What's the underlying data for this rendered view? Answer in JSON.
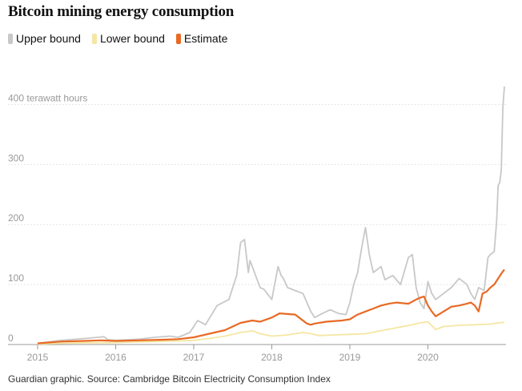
{
  "chart_data": {
    "type": "line",
    "title": "Bitcoin mining energy consumption",
    "ylabel": "terawatt hours",
    "ylim": [
      0,
      430
    ],
    "xlim": [
      2015.0,
      2020.98
    ],
    "grid": true,
    "legend_placement": "top-left",
    "yticks": [
      0,
      100,
      200,
      300,
      400
    ],
    "ytick_labels": [
      "0",
      "100",
      "200",
      "300",
      "400 terawatt hours"
    ],
    "xticks": [
      2015,
      2016,
      2017,
      2018,
      2019,
      2020
    ],
    "xtick_labels": [
      "2015",
      "2016",
      "2017",
      "2018",
      "2019",
      "2020"
    ],
    "source": "Guardian graphic. Source: Cambridge Bitcoin Electricity Consumption Index",
    "series": [
      {
        "name": "Upper bound",
        "color": "#c8c8c8",
        "x": [
          2015.0,
          2015.3,
          2015.6,
          2015.85,
          2015.9,
          2016.0,
          2016.3,
          2016.5,
          2016.7,
          2016.8,
          2016.95,
          2017.05,
          2017.15,
          2017.3,
          2017.45,
          2017.55,
          2017.6,
          2017.65,
          2017.7,
          2017.72,
          2017.75,
          2017.85,
          2017.9,
          2018.0,
          2018.08,
          2018.12,
          2018.15,
          2018.2,
          2018.3,
          2018.4,
          2018.5,
          2018.55,
          2018.65,
          2018.75,
          2018.85,
          2018.95,
          2019.0,
          2019.05,
          2019.1,
          2019.15,
          2019.2,
          2019.25,
          2019.3,
          2019.4,
          2019.45,
          2019.55,
          2019.65,
          2019.75,
          2019.8,
          2019.85,
          2019.9,
          2019.95,
          2020.0,
          2020.05,
          2020.1,
          2020.2,
          2020.3,
          2020.4,
          2020.5,
          2020.55,
          2020.6,
          2020.65,
          2020.72,
          2020.77,
          2020.8,
          2020.85,
          2020.88,
          2020.9,
          2020.92,
          2020.94,
          2020.96,
          2020.98
        ],
        "y": [
          2,
          7,
          10,
          13,
          8,
          7,
          9,
          12,
          14,
          12,
          20,
          40,
          33,
          65,
          75,
          115,
          170,
          175,
          120,
          140,
          130,
          95,
          92,
          75,
          130,
          115,
          110,
          95,
          90,
          85,
          55,
          45,
          52,
          58,
          52,
          50,
          70,
          100,
          120,
          160,
          195,
          150,
          120,
          130,
          108,
          115,
          100,
          145,
          150,
          95,
          70,
          60,
          105,
          85,
          75,
          85,
          95,
          110,
          100,
          85,
          75,
          95,
          90,
          145,
          150,
          155,
          205,
          265,
          270,
          290,
          395,
          430
        ]
      },
      {
        "name": "Lower bound",
        "color": "#f5e6a3",
        "x": [
          2015.0,
          2015.3,
          2015.6,
          2015.9,
          2016.2,
          2016.5,
          2016.8,
          2017.0,
          2017.2,
          2017.4,
          2017.6,
          2017.75,
          2017.85,
          2018.0,
          2018.2,
          2018.4,
          2018.5,
          2018.6,
          2018.8,
          2019.0,
          2019.2,
          2019.4,
          2019.6,
          2019.8,
          2019.9,
          2020.0,
          2020.1,
          2020.2,
          2020.4,
          2020.6,
          2020.8,
          2020.9,
          2020.98
        ],
        "y": [
          1,
          2,
          3,
          3,
          4,
          5,
          6,
          7,
          10,
          14,
          20,
          23,
          18,
          14,
          16,
          20,
          18,
          15,
          16,
          17,
          18,
          23,
          28,
          33,
          36,
          38,
          25,
          30,
          32,
          33,
          34,
          36,
          37
        ]
      },
      {
        "name": "Estimate",
        "color": "#e86a25",
        "x": [
          2015.0,
          2015.3,
          2015.6,
          2015.8,
          2016.0,
          2016.3,
          2016.6,
          2016.8,
          2017.0,
          2017.2,
          2017.4,
          2017.5,
          2017.6,
          2017.75,
          2017.85,
          2018.0,
          2018.1,
          2018.3,
          2018.45,
          2018.5,
          2018.55,
          2018.7,
          2018.9,
          2019.0,
          2019.1,
          2019.2,
          2019.3,
          2019.4,
          2019.5,
          2019.6,
          2019.75,
          2019.85,
          2019.9,
          2019.95,
          2020.0,
          2020.05,
          2020.1,
          2020.2,
          2020.3,
          2020.4,
          2020.5,
          2020.55,
          2020.6,
          2020.65,
          2020.7,
          2020.75,
          2020.8,
          2020.85,
          2020.9,
          2020.95,
          2020.98
        ],
        "y": [
          2,
          5,
          6,
          7,
          6,
          7,
          8,
          9,
          12,
          18,
          24,
          30,
          36,
          40,
          38,
          45,
          52,
          50,
          35,
          33,
          35,
          38,
          40,
          42,
          50,
          55,
          60,
          65,
          68,
          70,
          68,
          75,
          78,
          80,
          65,
          55,
          47,
          55,
          63,
          65,
          68,
          70,
          65,
          55,
          85,
          88,
          95,
          100,
          110,
          120,
          125
        ]
      }
    ]
  }
}
